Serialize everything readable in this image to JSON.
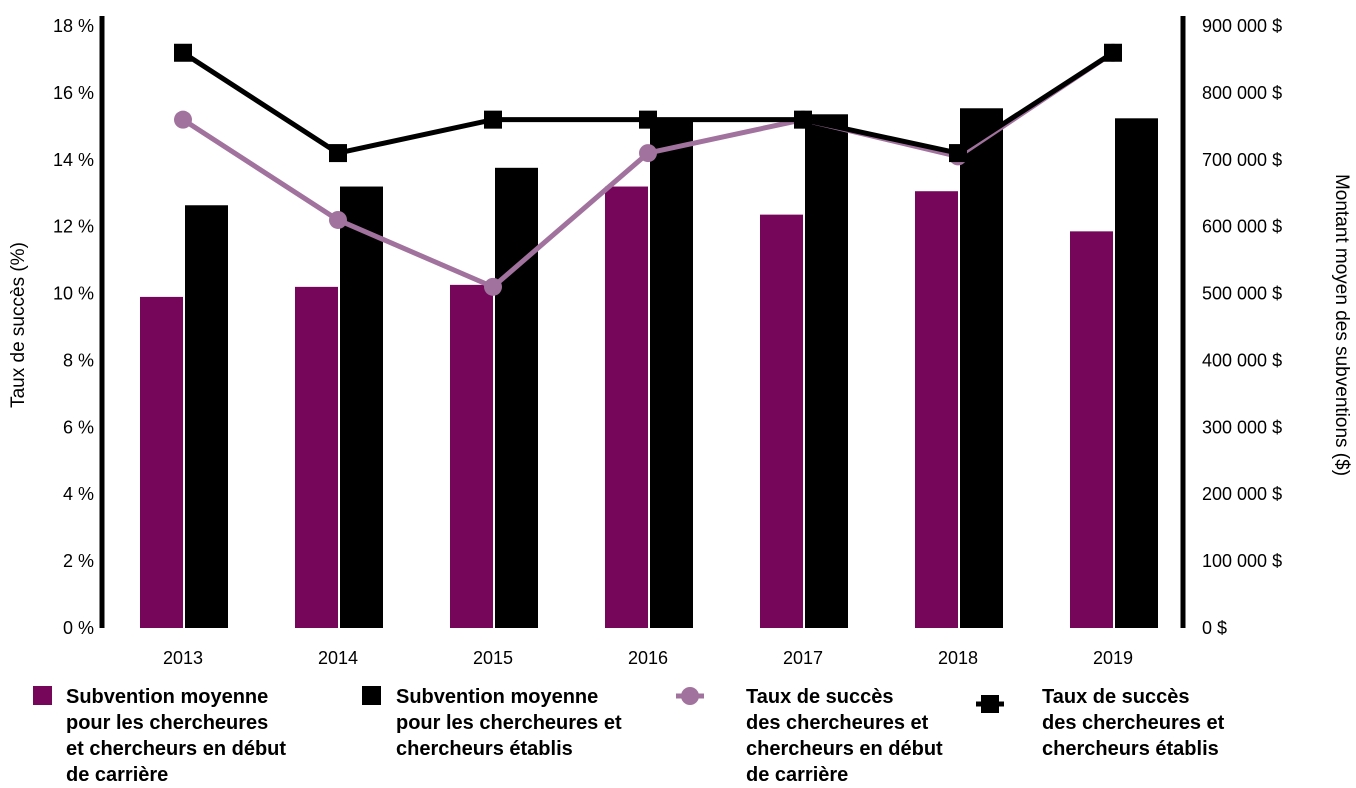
{
  "chart_data": {
    "type": "bar",
    "categories": [
      "2013",
      "2014",
      "2015",
      "2016",
      "2017",
      "2018",
      "2019"
    ],
    "y_left": {
      "label": "Taux de succès (%)",
      "range": [
        0,
        18
      ],
      "ticks": [
        0,
        2,
        4,
        6,
        8,
        10,
        12,
        14,
        16,
        18
      ],
      "tick_labels": [
        "0 %",
        "2 %",
        "4 %",
        "6 %",
        "8 %",
        "10 %",
        "12 %",
        "14 %",
        "16 %",
        "18 %"
      ]
    },
    "y_right": {
      "label": "Montant moyen des subventions ($)",
      "range": [
        0,
        900000
      ],
      "ticks": [
        0,
        100000,
        200000,
        300000,
        400000,
        500000,
        600000,
        700000,
        800000,
        900000
      ],
      "tick_labels": [
        "0 $",
        "100 000 $",
        "200 000 $",
        "300 000 $",
        "400 000 $",
        "500 000 $",
        "600 000 $",
        "700 000 $",
        "800 000 $",
        "900 000 $"
      ]
    },
    "series": [
      {
        "name": "Subvention moyenne pour les chercheures et chercheurs en début de carrière",
        "legend_lines": [
          "Subvention moyenne",
          "pour les chercheures",
          "et chercheurs en début",
          "de carrière"
        ],
        "type": "bar",
        "axis": "right",
        "color": "#76065a",
        "values": [
          495000,
          510000,
          513000,
          660000,
          618000,
          653000,
          593000
        ]
      },
      {
        "name": "Subvention moyenne pour les chercheures et chercheurs établis",
        "legend_lines": [
          "Subvention moyenne",
          "pour les chercheures et",
          "chercheurs établis"
        ],
        "type": "bar",
        "axis": "right",
        "color": "#000000",
        "values": [
          632000,
          660000,
          688000,
          760000,
          768000,
          777000,
          762000
        ]
      },
      {
        "name": "Taux de succès des chercheures et chercheurs en début de carrière",
        "legend_lines": [
          "Taux de succès",
          "des chercheures et",
          "chercheurs en début",
          "de carrière"
        ],
        "type": "line",
        "axis": "left",
        "marker": "circle",
        "color": "#a1729d",
        "values": [
          15.2,
          12.2,
          10.2,
          14.2,
          15.2,
          14.1,
          17.2
        ]
      },
      {
        "name": "Taux de succès des chercheures et chercheurs établis",
        "legend_lines": [
          "Taux de succès",
          "des chercheures et",
          "chercheurs établis"
        ],
        "type": "line",
        "axis": "left",
        "marker": "square",
        "color": "#000000",
        "values": [
          17.2,
          14.2,
          15.2,
          15.2,
          15.2,
          14.2,
          17.2
        ]
      }
    ],
    "legend_position": "bottom",
    "grid": false
  }
}
